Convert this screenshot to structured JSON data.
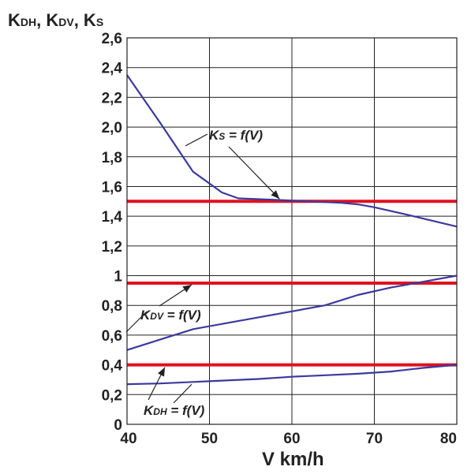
{
  "chart_data": {
    "type": "line",
    "ylabel_parts": [
      {
        "main": "K",
        "sub": "DH"
      },
      {
        "main": ", K",
        "sub": "DV"
      },
      {
        "main": ", K",
        "sub": "S"
      }
    ],
    "xlabel": "V  km/h",
    "xlim": [
      40,
      80
    ],
    "ylim": [
      0,
      2.6
    ],
    "grid": true,
    "x_ticks": [
      "40",
      "50",
      "60",
      "70",
      "80"
    ],
    "y_ticks": [
      "0",
      "0,2",
      "0,4",
      "0,6",
      "0,8",
      "1",
      "1,2",
      "1,4",
      "1,6",
      "1,8",
      "2,0",
      "2,2",
      "2,4",
      "2,6"
    ],
    "series": [
      {
        "name": "Ks = f(V)",
        "color": "#3a3a9e",
        "points": [
          [
            40,
            2.35
          ],
          [
            44,
            2.03
          ],
          [
            48,
            1.7
          ],
          [
            51.5,
            1.56
          ],
          [
            53.5,
            1.52
          ],
          [
            58,
            1.51
          ],
          [
            62,
            1.5
          ],
          [
            66,
            1.49
          ],
          [
            68,
            1.48
          ],
          [
            70,
            1.46
          ],
          [
            74,
            1.41
          ],
          [
            77,
            1.37
          ],
          [
            80,
            1.33
          ]
        ]
      },
      {
        "name": "KDV = f(V)",
        "color": "#3a3a9e",
        "points": [
          [
            40,
            0.5
          ],
          [
            44,
            0.57
          ],
          [
            48,
            0.64
          ],
          [
            52,
            0.68
          ],
          [
            56,
            0.72
          ],
          [
            60,
            0.76
          ],
          [
            64,
            0.8
          ],
          [
            68,
            0.87
          ],
          [
            72,
            0.92
          ],
          [
            76,
            0.96
          ],
          [
            80,
            1.0
          ]
        ]
      },
      {
        "name": "KDH = f(V)",
        "color": "#3a3a9e",
        "points": [
          [
            40,
            0.27
          ],
          [
            44,
            0.275
          ],
          [
            48,
            0.285
          ],
          [
            52,
            0.295
          ],
          [
            56,
            0.305
          ],
          [
            60,
            0.32
          ],
          [
            64,
            0.33
          ],
          [
            68,
            0.34
          ],
          [
            72,
            0.355
          ],
          [
            76,
            0.38
          ],
          [
            80,
            0.4
          ]
        ]
      }
    ],
    "reference_lines": [
      {
        "y": 1.5,
        "color": "#e01020"
      },
      {
        "y": 0.95,
        "color": "#e01020"
      },
      {
        "y": 0.4,
        "color": "#e01020"
      }
    ],
    "annotations": [
      {
        "main": "K",
        "sub": "S",
        "rest": " = f(V)"
      },
      {
        "main": "K",
        "sub": "DV",
        "rest": " = f(V)"
      },
      {
        "main": "K",
        "sub": "DH",
        "rest": " = f(V)"
      }
    ]
  }
}
